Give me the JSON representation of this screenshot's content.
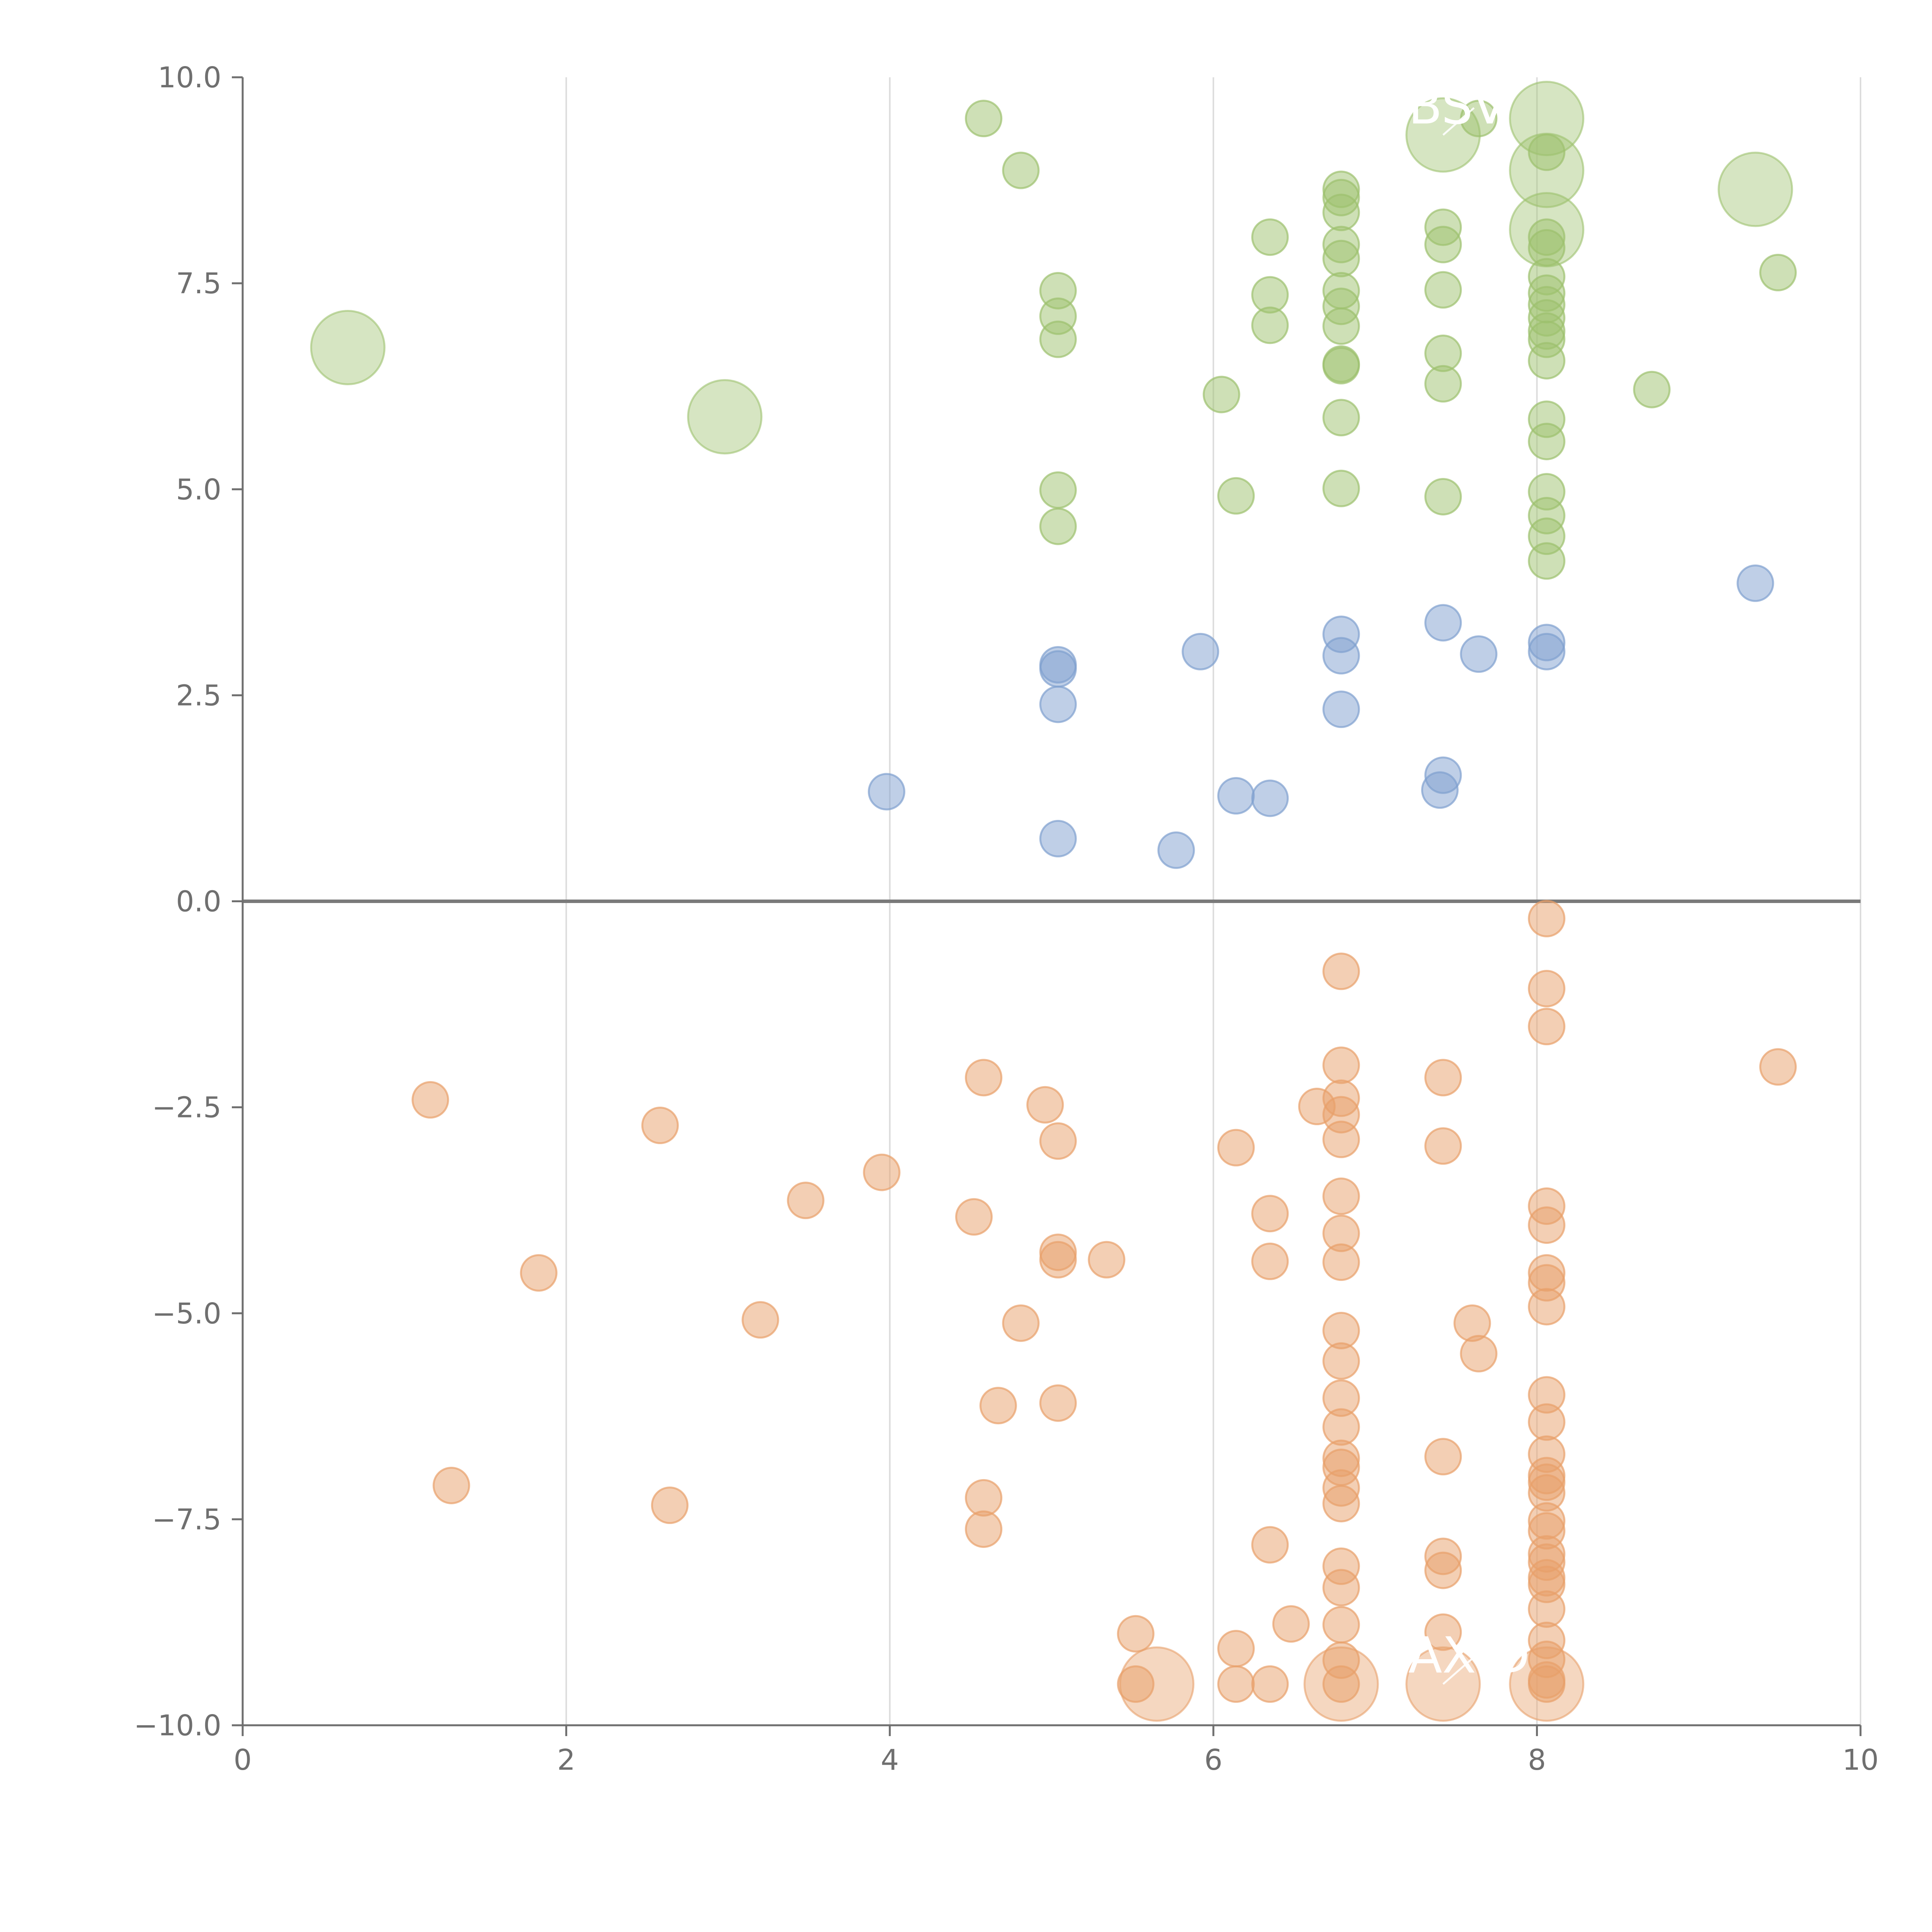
{
  "chart_data": {
    "type": "scatter",
    "title": "",
    "xlabel": "",
    "ylabel": "",
    "xlim": [
      0,
      10
    ],
    "ylim": [
      -10,
      10
    ],
    "xticks": [
      0,
      2,
      4,
      6,
      8,
      10
    ],
    "xtick_labels": [
      "0",
      "2",
      "4",
      "6",
      "8",
      "10"
    ],
    "yticks": [
      10,
      7.5,
      5,
      2.5,
      0,
      -2.5,
      -5,
      -7.5,
      -10
    ],
    "ytick_labels": [
      "10.0",
      "7.5",
      "5.0",
      "2.5",
      "0.0",
      "−2.5",
      "−5.0",
      "−7.5",
      "−10.0"
    ],
    "grid": "vertical",
    "colors": {
      "positive": "#9dc16e",
      "neutral": "#7fa0cf",
      "negative": "#e8a06a",
      "axis": "#6f6f6f",
      "grid": "#dcdcdc"
    },
    "series": [
      {
        "name": "positive",
        "color": "#9dc16e",
        "points": [
          [
            4.58,
            9.5
          ],
          [
            4.81,
            8.87
          ],
          [
            5.04,
            7.41
          ],
          [
            5.04,
            7.1
          ],
          [
            5.04,
            6.82
          ],
          [
            5.04,
            4.99
          ],
          [
            5.04,
            4.55
          ],
          [
            6.05,
            6.15
          ],
          [
            6.14,
            4.92
          ],
          [
            6.35,
            8.06
          ],
          [
            6.35,
            7.36
          ],
          [
            6.35,
            6.99
          ],
          [
            6.79,
            8.64
          ],
          [
            6.79,
            8.54
          ],
          [
            6.79,
            8.36
          ],
          [
            6.79,
            7.97
          ],
          [
            6.79,
            7.8
          ],
          [
            6.79,
            7.41
          ],
          [
            6.79,
            7.22
          ],
          [
            6.79,
            6.98
          ],
          [
            6.79,
            6.52
          ],
          [
            6.79,
            6.5
          ],
          [
            6.79,
            5.87
          ],
          [
            6.79,
            5.01
          ],
          [
            7.42,
            8.18
          ],
          [
            7.42,
            7.97
          ],
          [
            7.42,
            7.42
          ],
          [
            7.42,
            6.65
          ],
          [
            7.42,
            6.28
          ],
          [
            7.42,
            4.91
          ],
          [
            7.64,
            9.5
          ],
          [
            8.06,
            9.09
          ],
          [
            8.06,
            8.06
          ],
          [
            8.06,
            7.93
          ],
          [
            8.06,
            7.58
          ],
          [
            8.06,
            7.38
          ],
          [
            8.06,
            7.24
          ],
          [
            8.06,
            7.08
          ],
          [
            8.06,
            6.92
          ],
          [
            8.06,
            6.82
          ],
          [
            8.06,
            6.56
          ],
          [
            8.06,
            5.85
          ],
          [
            8.06,
            5.58
          ],
          [
            8.06,
            4.97
          ],
          [
            8.06,
            4.68
          ],
          [
            8.06,
            4.43
          ],
          [
            8.06,
            4.13
          ],
          [
            8.71,
            6.21
          ],
          [
            9.49,
            7.63
          ]
        ],
        "large_points": [
          [
            0.65,
            6.72
          ],
          [
            2.98,
            5.88
          ],
          [
            7.42,
            9.3
          ],
          [
            8.06,
            9.5
          ],
          [
            8.06,
            8.87
          ],
          [
            8.06,
            8.15
          ],
          [
            9.35,
            8.64
          ]
        ]
      },
      {
        "name": "neutral",
        "color": "#7fa0cf",
        "points": [
          [
            3.98,
            1.33
          ],
          [
            5.04,
            2.87
          ],
          [
            5.04,
            2.82
          ],
          [
            5.04,
            2.39
          ],
          [
            5.04,
            0.76
          ],
          [
            5.77,
            0.62
          ],
          [
            5.92,
            3.03
          ],
          [
            6.14,
            1.28
          ],
          [
            6.35,
            1.25
          ],
          [
            6.79,
            3.24
          ],
          [
            6.79,
            2.98
          ],
          [
            6.79,
            2.33
          ],
          [
            7.4,
            1.35
          ],
          [
            7.42,
            3.38
          ],
          [
            7.42,
            1.53
          ],
          [
            7.64,
            3.0
          ],
          [
            8.06,
            3.14
          ],
          [
            8.06,
            3.03
          ],
          [
            9.35,
            3.86
          ]
        ],
        "large_points": []
      },
      {
        "name": "negative",
        "color": "#e8a06a",
        "points": [
          [
            1.16,
            -2.41
          ],
          [
            1.29,
            -7.09
          ],
          [
            1.83,
            -4.51
          ],
          [
            2.58,
            -2.72
          ],
          [
            2.64,
            -7.33
          ],
          [
            3.2,
            -5.08
          ],
          [
            3.48,
            -3.63
          ],
          [
            3.95,
            -3.29
          ],
          [
            4.52,
            -3.83
          ],
          [
            4.58,
            -2.14
          ],
          [
            4.58,
            -7.24
          ],
          [
            4.58,
            -7.62
          ],
          [
            4.67,
            -6.12
          ],
          [
            4.81,
            -5.12
          ],
          [
            4.96,
            -2.47
          ],
          [
            5.04,
            -2.91
          ],
          [
            5.04,
            -4.26
          ],
          [
            5.04,
            -4.35
          ],
          [
            5.04,
            -6.09
          ],
          [
            5.34,
            -4.35
          ],
          [
            5.52,
            -8.89
          ],
          [
            5.52,
            -9.5
          ],
          [
            6.14,
            -2.99
          ],
          [
            6.14,
            -9.07
          ],
          [
            6.14,
            -9.5
          ],
          [
            6.35,
            -3.79
          ],
          [
            6.35,
            -4.37
          ],
          [
            6.35,
            -7.81
          ],
          [
            6.35,
            -9.5
          ],
          [
            6.48,
            -8.77
          ],
          [
            6.64,
            -2.49
          ],
          [
            6.79,
            -0.85
          ],
          [
            6.79,
            -1.99
          ],
          [
            6.79,
            -2.39
          ],
          [
            6.79,
            -2.59
          ],
          [
            6.79,
            -2.89
          ],
          [
            6.79,
            -3.58
          ],
          [
            6.79,
            -4.03
          ],
          [
            6.79,
            -4.38
          ],
          [
            6.79,
            -5.21
          ],
          [
            6.79,
            -5.58
          ],
          [
            6.79,
            -6.03
          ],
          [
            6.79,
            -6.38
          ],
          [
            6.79,
            -6.76
          ],
          [
            6.79,
            -6.87
          ],
          [
            6.79,
            -7.12
          ],
          [
            6.79,
            -7.31
          ],
          [
            6.79,
            -8.07
          ],
          [
            6.79,
            -8.33
          ],
          [
            6.79,
            -8.78
          ],
          [
            6.79,
            -9.21
          ],
          [
            6.79,
            -9.5
          ],
          [
            7.42,
            -2.14
          ],
          [
            7.42,
            -2.97
          ],
          [
            7.42,
            -6.74
          ],
          [
            7.42,
            -7.95
          ],
          [
            7.42,
            -8.12
          ],
          [
            7.42,
            -8.87
          ],
          [
            7.6,
            -5.12
          ],
          [
            7.64,
            -5.49
          ],
          [
            8.06,
            -0.21
          ],
          [
            8.06,
            -1.06
          ],
          [
            8.06,
            -1.52
          ],
          [
            8.06,
            -3.7
          ],
          [
            8.06,
            -3.93
          ],
          [
            8.06,
            -4.51
          ],
          [
            8.06,
            -4.63
          ],
          [
            8.06,
            -4.92
          ],
          [
            8.06,
            -5.99
          ],
          [
            8.06,
            -6.32
          ],
          [
            8.06,
            -6.71
          ],
          [
            8.06,
            -6.97
          ],
          [
            8.06,
            -7.05
          ],
          [
            8.06,
            -7.18
          ],
          [
            8.06,
            -7.52
          ],
          [
            8.06,
            -7.64
          ],
          [
            8.06,
            -7.92
          ],
          [
            8.06,
            -8.02
          ],
          [
            8.06,
            -8.21
          ],
          [
            8.06,
            -8.29
          ],
          [
            8.06,
            -8.59
          ],
          [
            8.06,
            -8.97
          ],
          [
            8.06,
            -9.2
          ],
          [
            8.06,
            -9.45
          ],
          [
            8.06,
            -9.5
          ],
          [
            9.49,
            -2.01
          ]
        ],
        "large_points": [
          [
            5.65,
            -9.5
          ],
          [
            6.79,
            -9.5
          ],
          [
            7.42,
            -9.5
          ],
          [
            8.06,
            -9.5
          ]
        ]
      }
    ],
    "annotations": [
      {
        "text": "BSV",
        "x": 7.42,
        "y": 9.3
      },
      {
        "text": "AX.D",
        "x": 7.42,
        "y": -9.5
      }
    ]
  }
}
